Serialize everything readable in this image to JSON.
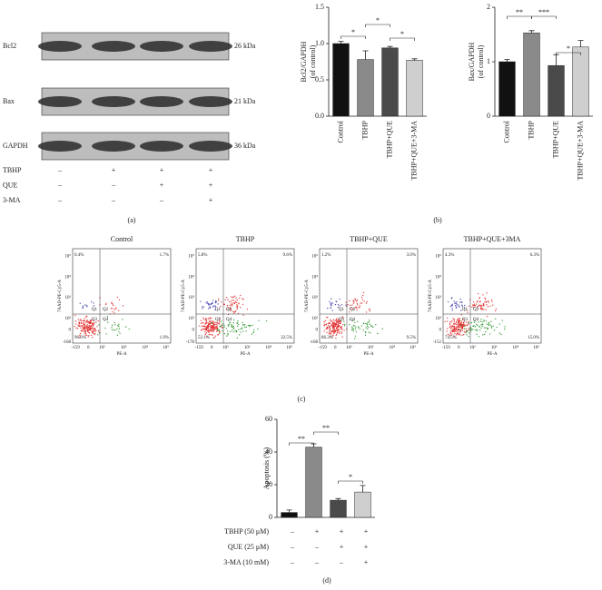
{
  "panel_a": {
    "bands": [
      "Bcl2",
      "Bax",
      "GAPDH"
    ],
    "sizes": [
      "26 kDa",
      "21 kDa",
      "36 kDa"
    ],
    "rows": [
      [
        "TBHP",
        "–",
        "+",
        "+",
        "+"
      ],
      [
        "QUE",
        "–",
        "–",
        "+",
        "+"
      ],
      [
        "3-MA",
        "–",
        "–",
        "–",
        "+"
      ]
    ],
    "label": "(a)"
  },
  "panel_b_label": "(b)",
  "chart_data": [
    {
      "type": "bar",
      "ylabel": [
        "Bcl2/GAPDH",
        "(of control)"
      ],
      "categories": [
        "Control",
        "TBHP",
        "TBHP+QUE",
        "TBHP+QUE+3-MA"
      ],
      "values": [
        1.0,
        0.78,
        0.94,
        0.77
      ],
      "errors": [
        0.03,
        0.12,
        0.02,
        0.02
      ],
      "colors": [
        "#111111",
        "#8a8a8a",
        "#4a4a4a",
        "#cfcfcf"
      ],
      "ylim": [
        0,
        1.5
      ],
      "yticks": [
        {
          "value": 0,
          "label": "0.0"
        },
        {
          "value": 0.5,
          "label": "0.5"
        },
        {
          "value": 1,
          "label": "1.0"
        },
        {
          "value": 1.5,
          "label": "1.5"
        }
      ],
      "annotations": [
        "*",
        "*",
        "*"
      ]
    },
    {
      "type": "bar",
      "ylabel": [
        "Bax/GAPDH",
        "(of control)"
      ],
      "categories": [
        "Control",
        "TBHP",
        "TBHP+QUE",
        "TBHP+QUE+3-MA"
      ],
      "values": [
        1.0,
        1.53,
        0.93,
        1.27
      ],
      "errors": [
        0.04,
        0.04,
        0.2,
        0.12
      ],
      "colors": [
        "#111111",
        "#8a8a8a",
        "#4a4a4a",
        "#cfcfcf"
      ],
      "ylim": [
        0,
        2
      ],
      "yticks": [
        0,
        1,
        2
      ],
      "annotations": [
        "**",
        "***",
        "*"
      ]
    },
    {
      "type": "bar",
      "ylabel": [
        "Apoptosis (%)"
      ],
      "values": [
        3,
        43,
        10.5,
        15.5
      ],
      "errors": [
        1.5,
        2,
        1,
        4
      ],
      "colors": [
        "#111111",
        "#8a8a8a",
        "#4a4a4a",
        "#cfcfcf"
      ],
      "ylim": [
        0,
        60
      ],
      "yticks": [
        0,
        20,
        40,
        60
      ],
      "annotations": [
        "**",
        "**",
        "*"
      ]
    }
  ],
  "panel_c": {
    "x_label": "PE-A",
    "y_label": "7AAD-PE-Cy5-A",
    "x_ticks": [
      "-159",
      "0",
      "10²",
      "10³",
      "10⁴",
      "10⁵"
    ],
    "y_ticks": [
      "10⁵",
      "10⁴",
      "10³",
      "10²",
      "0"
    ],
    "q_labels": [
      "Q1",
      "Q2",
      "Q3",
      "Q4"
    ],
    "plots": [
      {
        "title": "Control",
        "y_min": "-168",
        "quadrants": [
          "0.4%",
          "1.7%",
          "96.0%",
          "1.9%"
        ]
      },
      {
        "title": "TBHP",
        "y_min": "-178",
        "quadrants": [
          "5.8%",
          "9.6%",
          "52.1%",
          "32.5%"
        ]
      },
      {
        "title": "TBHP+QUE",
        "y_min": "-168",
        "quadrants": [
          "1.2%",
          "3.0%",
          "86.3%",
          "9.5%"
        ]
      },
      {
        "title": "TBHP+QUE+3MA",
        "y_min": "-152",
        "quadrants": [
          "4.3%",
          "6.3%",
          "74.5%",
          "15.0%"
        ]
      }
    ],
    "label": "(c)"
  },
  "panel_d": {
    "rows": [
      [
        "TBHP (50 μM)",
        "–",
        "+",
        "+",
        "+"
      ],
      [
        "QUE (25 μM)",
        "–",
        "–",
        "+",
        "+"
      ],
      [
        "3-MA (10 mM)",
        "–",
        "–",
        "–",
        "+"
      ]
    ],
    "label": "(d)"
  }
}
